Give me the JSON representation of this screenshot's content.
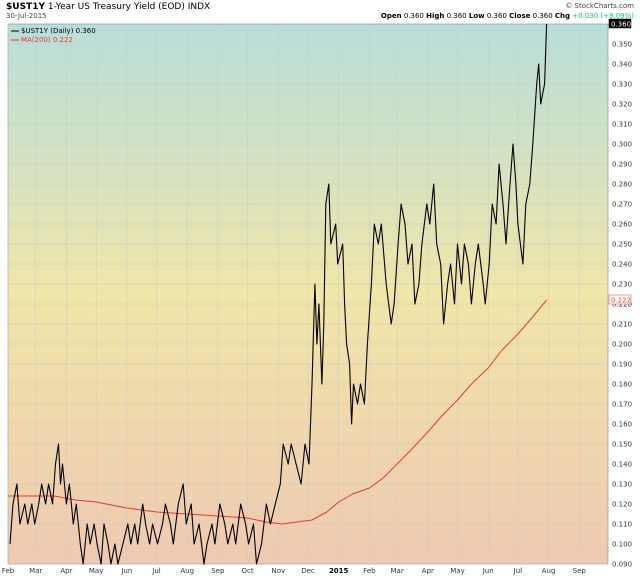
{
  "header": {
    "symbol": "$UST1Y",
    "name": "1-Year US Treasury Yield (EOD) INDX",
    "date": "30-Jul-2015",
    "watermark": "© StockCharts.com",
    "open_label": "Open",
    "open": "0.360",
    "high_label": "High",
    "high": "0.360",
    "low_label": "Low",
    "low": "0.360",
    "close_label": "Close",
    "close": "0.360",
    "chg_label": "Chg",
    "chg": "+0.030 (+9.09%)"
  },
  "legend": {
    "series1": "$UST1Y (Daily) 0.360",
    "series2": "MA(200) 0.222"
  },
  "last_labels": {
    "price": "0.360",
    "ma": "0.222"
  },
  "colors": {
    "price": "#000000",
    "ma": "#e03c32",
    "bg_top": "#b8dedb",
    "bg_mid": "#f0e6a8",
    "bg_bottom": "#efc9b1",
    "grid": "#c9c9c9"
  },
  "chart_data": {
    "type": "line",
    "title": "$UST1Y 1-Year US Treasury Yield (EOD) INDX",
    "ylim": [
      0.09,
      0.36
    ],
    "yticks": [
      0.09,
      0.1,
      0.11,
      0.12,
      0.13,
      0.14,
      0.15,
      0.16,
      0.17,
      0.18,
      0.19,
      0.2,
      0.21,
      0.22,
      0.23,
      0.24,
      0.25,
      0.26,
      0.27,
      0.28,
      0.29,
      0.3,
      0.31,
      0.32,
      0.33,
      0.34,
      0.35
    ],
    "ytick_labels": [
      "0.090",
      "0.100",
      "0.110",
      "0.120",
      "0.130",
      "0.140",
      "0.150",
      "0.160",
      "0.170",
      "0.180",
      "0.190",
      "0.200",
      "0.210",
      "0.220",
      "0.230",
      "0.240",
      "0.250",
      "0.260",
      "0.270",
      "0.280",
      "0.290",
      "0.300",
      "0.310",
      "0.320",
      "0.330",
      "0.340",
      "0.350"
    ],
    "x_range": [
      "2014-02-01",
      "2015-09-30"
    ],
    "x_ticks": [
      {
        "date": "2014-02-01",
        "label": "Feb"
      },
      {
        "date": "2014-03-01",
        "label": "Mar"
      },
      {
        "date": "2014-04-01",
        "label": "Apr"
      },
      {
        "date": "2014-05-01",
        "label": "May"
      },
      {
        "date": "2014-06-01",
        "label": "Jun"
      },
      {
        "date": "2014-07-01",
        "label": "Jul"
      },
      {
        "date": "2014-08-01",
        "label": "Aug"
      },
      {
        "date": "2014-09-01",
        "label": "Sep"
      },
      {
        "date": "2014-10-01",
        "label": "Oct"
      },
      {
        "date": "2014-11-01",
        "label": "Nov"
      },
      {
        "date": "2014-12-01",
        "label": "Dec"
      },
      {
        "date": "2015-01-01",
        "label": "2015",
        "bold": true
      },
      {
        "date": "2015-02-01",
        "label": "Feb"
      },
      {
        "date": "2015-03-01",
        "label": "Mar"
      },
      {
        "date": "2015-04-01",
        "label": "Apr"
      },
      {
        "date": "2015-05-01",
        "label": "May"
      },
      {
        "date": "2015-06-01",
        "label": "Jun"
      },
      {
        "date": "2015-07-01",
        "label": "Jul"
      },
      {
        "date": "2015-08-01",
        "label": "Aug"
      },
      {
        "date": "2015-09-01",
        "label": "Sep"
      }
    ],
    "grid": true,
    "series": [
      {
        "name": "$UST1Y (Daily)",
        "color": "#000000",
        "points": [
          [
            "2014-02-03",
            0.1
          ],
          [
            "2014-02-06",
            0.12
          ],
          [
            "2014-02-10",
            0.13
          ],
          [
            "2014-02-13",
            0.11
          ],
          [
            "2014-02-18",
            0.12
          ],
          [
            "2014-02-21",
            0.11
          ],
          [
            "2014-02-25",
            0.12
          ],
          [
            "2014-02-28",
            0.11
          ],
          [
            "2014-03-04",
            0.12
          ],
          [
            "2014-03-07",
            0.13
          ],
          [
            "2014-03-11",
            0.12
          ],
          [
            "2014-03-14",
            0.13
          ],
          [
            "2014-03-18",
            0.12
          ],
          [
            "2014-03-21",
            0.14
          ],
          [
            "2014-03-24",
            0.15
          ],
          [
            "2014-03-26",
            0.13
          ],
          [
            "2014-03-28",
            0.14
          ],
          [
            "2014-04-01",
            0.12
          ],
          [
            "2014-04-04",
            0.13
          ],
          [
            "2014-04-08",
            0.11
          ],
          [
            "2014-04-11",
            0.12
          ],
          [
            "2014-04-15",
            0.1
          ],
          [
            "2014-04-18",
            0.09
          ],
          [
            "2014-04-22",
            0.11
          ],
          [
            "2014-04-25",
            0.1
          ],
          [
            "2014-04-29",
            0.11
          ],
          [
            "2014-05-02",
            0.1
          ],
          [
            "2014-05-06",
            0.09
          ],
          [
            "2014-05-09",
            0.11
          ],
          [
            "2014-05-13",
            0.1
          ],
          [
            "2014-05-16",
            0.09
          ],
          [
            "2014-05-20",
            0.1
          ],
          [
            "2014-05-23",
            0.09
          ],
          [
            "2014-05-28",
            0.1
          ],
          [
            "2014-06-02",
            0.11
          ],
          [
            "2014-06-05",
            0.1
          ],
          [
            "2014-06-09",
            0.11
          ],
          [
            "2014-06-12",
            0.1
          ],
          [
            "2014-06-17",
            0.12
          ],
          [
            "2014-06-20",
            0.11
          ],
          [
            "2014-06-24",
            0.1
          ],
          [
            "2014-06-27",
            0.11
          ],
          [
            "2014-07-02",
            0.1
          ],
          [
            "2014-07-07",
            0.11
          ],
          [
            "2014-07-10",
            0.12
          ],
          [
            "2014-07-15",
            0.11
          ],
          [
            "2014-07-18",
            0.1
          ],
          [
            "2014-07-23",
            0.12
          ],
          [
            "2014-07-28",
            0.13
          ],
          [
            "2014-07-31",
            0.11
          ],
          [
            "2014-08-05",
            0.12
          ],
          [
            "2014-08-08",
            0.1
          ],
          [
            "2014-08-13",
            0.11
          ],
          [
            "2014-08-18",
            0.09
          ],
          [
            "2014-08-21",
            0.1
          ],
          [
            "2014-08-26",
            0.11
          ],
          [
            "2014-08-29",
            0.1
          ],
          [
            "2014-09-03",
            0.12
          ],
          [
            "2014-09-08",
            0.11
          ],
          [
            "2014-09-11",
            0.1
          ],
          [
            "2014-09-16",
            0.11
          ],
          [
            "2014-09-19",
            0.1
          ],
          [
            "2014-09-24",
            0.12
          ],
          [
            "2014-09-29",
            0.11
          ],
          [
            "2014-10-02",
            0.1
          ],
          [
            "2014-10-07",
            0.11
          ],
          [
            "2014-10-10",
            0.09
          ],
          [
            "2014-10-15",
            0.1
          ],
          [
            "2014-10-20",
            0.12
          ],
          [
            "2014-10-24",
            0.11
          ],
          [
            "2014-10-29",
            0.12
          ],
          [
            "2014-11-03",
            0.13
          ],
          [
            "2014-11-06",
            0.15
          ],
          [
            "2014-11-11",
            0.14
          ],
          [
            "2014-11-14",
            0.15
          ],
          [
            "2014-11-19",
            0.14
          ],
          [
            "2014-11-24",
            0.13
          ],
          [
            "2014-11-28",
            0.15
          ],
          [
            "2014-12-02",
            0.14
          ],
          [
            "2014-12-05",
            0.18
          ],
          [
            "2014-12-08",
            0.23
          ],
          [
            "2014-12-10",
            0.2
          ],
          [
            "2014-12-12",
            0.22
          ],
          [
            "2014-12-15",
            0.18
          ],
          [
            "2014-12-17",
            0.21
          ],
          [
            "2014-12-19",
            0.27
          ],
          [
            "2014-12-22",
            0.28
          ],
          [
            "2014-12-24",
            0.25
          ],
          [
            "2014-12-29",
            0.26
          ],
          [
            "2014-12-31",
            0.24
          ],
          [
            "2015-01-05",
            0.25
          ],
          [
            "2015-01-07",
            0.22
          ],
          [
            "2015-01-09",
            0.2
          ],
          [
            "2015-01-12",
            0.19
          ],
          [
            "2015-01-14",
            0.16
          ],
          [
            "2015-01-16",
            0.18
          ],
          [
            "2015-01-20",
            0.17
          ],
          [
            "2015-01-23",
            0.18
          ],
          [
            "2015-01-27",
            0.17
          ],
          [
            "2015-01-30",
            0.2
          ],
          [
            "2015-02-03",
            0.23
          ],
          [
            "2015-02-06",
            0.26
          ],
          [
            "2015-02-10",
            0.25
          ],
          [
            "2015-02-13",
            0.26
          ],
          [
            "2015-02-18",
            0.23
          ],
          [
            "2015-02-23",
            0.21
          ],
          [
            "2015-02-26",
            0.22
          ],
          [
            "2015-03-02",
            0.25
          ],
          [
            "2015-03-05",
            0.27
          ],
          [
            "2015-03-09",
            0.26
          ],
          [
            "2015-03-12",
            0.24
          ],
          [
            "2015-03-16",
            0.25
          ],
          [
            "2015-03-19",
            0.22
          ],
          [
            "2015-03-23",
            0.23
          ],
          [
            "2015-03-26",
            0.25
          ],
          [
            "2015-03-31",
            0.27
          ],
          [
            "2015-04-03",
            0.26
          ],
          [
            "2015-04-07",
            0.28
          ],
          [
            "2015-04-10",
            0.25
          ],
          [
            "2015-04-14",
            0.24
          ],
          [
            "2015-04-17",
            0.21
          ],
          [
            "2015-04-21",
            0.23
          ],
          [
            "2015-04-24",
            0.24
          ],
          [
            "2015-04-28",
            0.22
          ],
          [
            "2015-05-01",
            0.25
          ],
          [
            "2015-05-05",
            0.23
          ],
          [
            "2015-05-08",
            0.25
          ],
          [
            "2015-05-12",
            0.24
          ],
          [
            "2015-05-15",
            0.22
          ],
          [
            "2015-05-19",
            0.24
          ],
          [
            "2015-05-22",
            0.25
          ],
          [
            "2015-05-27",
            0.23
          ],
          [
            "2015-05-29",
            0.22
          ],
          [
            "2015-06-02",
            0.24
          ],
          [
            "2015-06-05",
            0.27
          ],
          [
            "2015-06-09",
            0.26
          ],
          [
            "2015-06-12",
            0.29
          ],
          [
            "2015-06-16",
            0.27
          ],
          [
            "2015-06-19",
            0.25
          ],
          [
            "2015-06-23",
            0.28
          ],
          [
            "2015-06-26",
            0.3
          ],
          [
            "2015-06-29",
            0.28
          ],
          [
            "2015-07-01",
            0.26
          ],
          [
            "2015-07-06",
            0.24
          ],
          [
            "2015-07-09",
            0.27
          ],
          [
            "2015-07-13",
            0.28
          ],
          [
            "2015-07-16",
            0.3
          ],
          [
            "2015-07-20",
            0.33
          ],
          [
            "2015-07-22",
            0.34
          ],
          [
            "2015-07-24",
            0.32
          ],
          [
            "2015-07-28",
            0.33
          ],
          [
            "2015-07-30",
            0.36
          ]
        ]
      },
      {
        "name": "MA(200)",
        "color": "#e03c32",
        "points": [
          [
            "2014-02-01",
            0.124
          ],
          [
            "2014-03-01",
            0.124
          ],
          [
            "2014-03-20",
            0.124
          ],
          [
            "2014-04-10",
            0.122
          ],
          [
            "2014-05-01",
            0.121
          ],
          [
            "2014-06-01",
            0.118
          ],
          [
            "2014-07-01",
            0.116
          ],
          [
            "2014-08-01",
            0.115
          ],
          [
            "2014-09-01",
            0.114
          ],
          [
            "2014-10-01",
            0.113
          ],
          [
            "2014-10-20",
            0.111
          ],
          [
            "2014-11-05",
            0.11
          ],
          [
            "2014-11-20",
            0.111
          ],
          [
            "2014-12-05",
            0.112
          ],
          [
            "2014-12-20",
            0.116
          ],
          [
            "2015-01-01",
            0.121
          ],
          [
            "2015-01-15",
            0.125
          ],
          [
            "2015-02-01",
            0.128
          ],
          [
            "2015-02-15",
            0.133
          ],
          [
            "2015-03-01",
            0.14
          ],
          [
            "2015-03-15",
            0.147
          ],
          [
            "2015-04-01",
            0.156
          ],
          [
            "2015-04-15",
            0.164
          ],
          [
            "2015-05-01",
            0.172
          ],
          [
            "2015-05-15",
            0.18
          ],
          [
            "2015-06-01",
            0.188
          ],
          [
            "2015-06-15",
            0.197
          ],
          [
            "2015-07-01",
            0.205
          ],
          [
            "2015-07-15",
            0.213
          ],
          [
            "2015-07-30",
            0.222
          ]
        ]
      }
    ]
  }
}
